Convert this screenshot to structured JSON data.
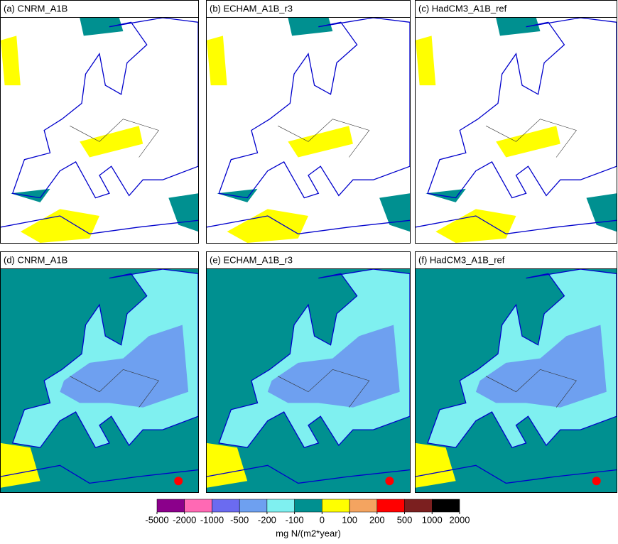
{
  "panels": [
    {
      "title": "(a)  CNRM_A1B"
    },
    {
      "title": "(b)  ECHAM_A1B_r3"
    },
    {
      "title": "(c)  HadCM3_A1B_ref"
    },
    {
      "title": "(d)  CNRM_A1B"
    },
    {
      "title": "(e)  ECHAM_A1B_r3"
    },
    {
      "title": "(f)  HadCM3_A1B_ref"
    }
  ],
  "colorbar": {
    "boundaries": [
      -5000,
      -2000,
      -1000,
      -500,
      -200,
      -100,
      0,
      100,
      200,
      500,
      1000,
      2000
    ],
    "colors": [
      "#8b008b",
      "#ff69b4",
      "#6b6bf0",
      "#6ea0f0",
      "#7ff0f0",
      "#009090",
      "#ffff00",
      "#f4a460",
      "#ff0000",
      "#7b1f1f",
      "#000000"
    ],
    "label": "mg N/(m2*year)"
  }
}
